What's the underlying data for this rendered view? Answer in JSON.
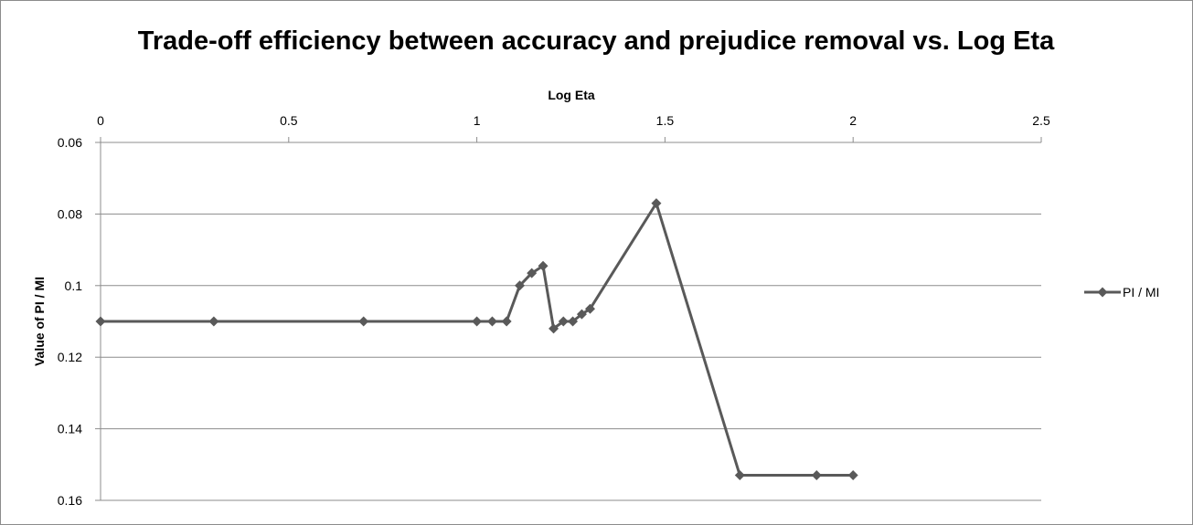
{
  "chart_data": {
    "type": "scatter",
    "title": "Trade-off efficiency between accuracy and prejudice removal vs. Log Eta",
    "xlabel": "Log Eta",
    "ylabel": "Value of PI / MI",
    "xlim": [
      0,
      2.5
    ],
    "ylim": [
      0.06,
      0.16
    ],
    "y_reversed": true,
    "x_axis_position": "top",
    "x_ticks": [
      "0",
      "0.5",
      "1",
      "1.5",
      "2",
      "2.5"
    ],
    "y_ticks": [
      "0.06",
      "0.08",
      "0.1",
      "0.12",
      "0.14",
      "0.16"
    ],
    "grid": true,
    "legend": {
      "position": "right"
    },
    "series": [
      {
        "name": "PI / MI",
        "color": "#595959",
        "marker": "diamond",
        "line": true,
        "x": [
          0,
          0.301,
          0.699,
          1.0,
          1.041,
          1.079,
          1.114,
          1.146,
          1.176,
          1.204,
          1.23,
          1.255,
          1.279,
          1.301,
          1.477,
          1.699,
          1.903,
          2.0
        ],
        "y": [
          0.11,
          0.11,
          0.11,
          0.11,
          0.11,
          0.11,
          0.1,
          0.0965,
          0.0945,
          0.112,
          0.11,
          0.11,
          0.108,
          0.1065,
          0.077,
          0.153,
          0.153,
          0.153
        ]
      }
    ]
  }
}
